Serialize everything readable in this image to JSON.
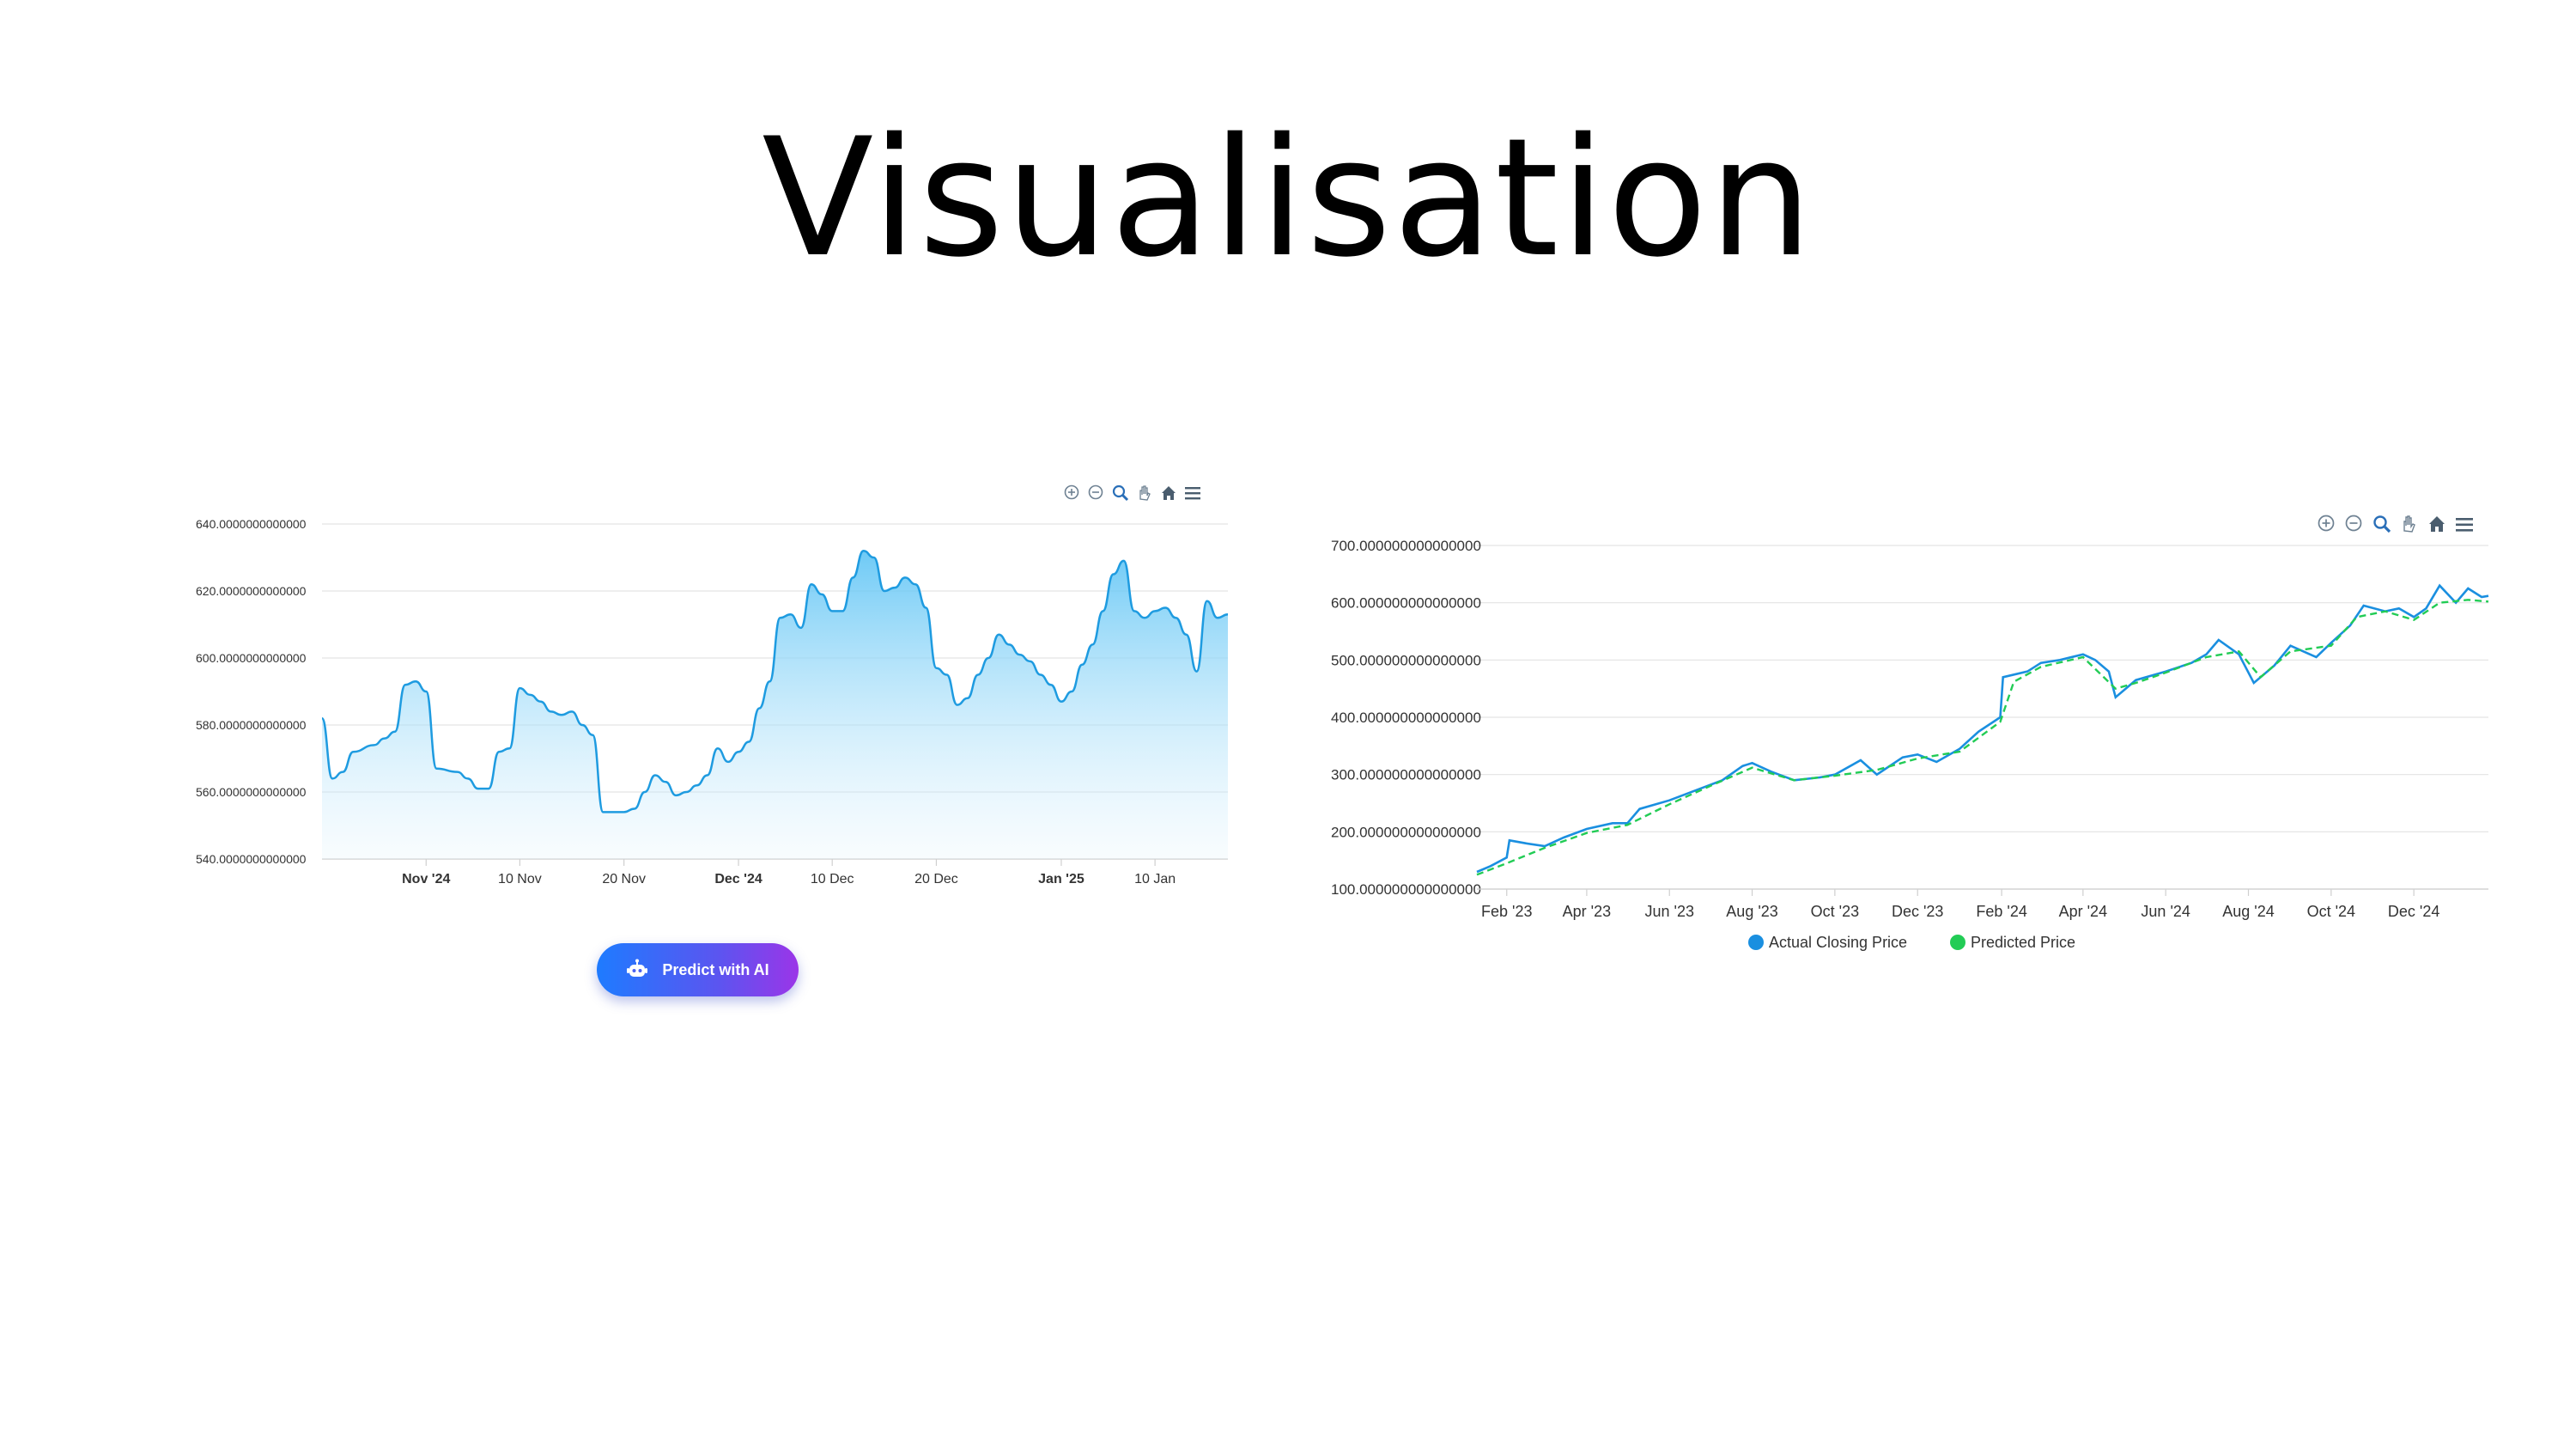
{
  "slide": {
    "title": "Visualisation"
  },
  "toolbar_icons": [
    "zoom-in-icon",
    "zoom-out-icon",
    "zoom-selection-icon",
    "pan-hand-icon",
    "home-reset-icon",
    "menu-icon"
  ],
  "colors": {
    "line1": "#1e9be0",
    "actual": "#1a8fe0",
    "predicted": "#22cc55",
    "button_start": "#1e7bff",
    "button_end": "#9b35e8"
  },
  "predict_button": {
    "label": "Predict with AI",
    "icon": "robot-icon"
  },
  "chart_data": [
    {
      "type": "area",
      "title": "",
      "xlabel": "",
      "ylabel": "",
      "ylim": [
        540,
        640
      ],
      "y_ticks": [
        "540.0000000000000",
        "560.0000000000000",
        "580.0000000000000",
        "600.0000000000000",
        "620.0000000000000",
        "640.0000000000000"
      ],
      "x_ticks": [
        {
          "date": "2024-11-01",
          "label": "Nov '24",
          "bold": true
        },
        {
          "date": "2024-11-10",
          "label": "10 Nov",
          "bold": false
        },
        {
          "date": "2024-11-20",
          "label": "20 Nov",
          "bold": false
        },
        {
          "date": "2024-12-01",
          "label": "Dec '24",
          "bold": true
        },
        {
          "date": "2024-12-10",
          "label": "10 Dec",
          "bold": false
        },
        {
          "date": "2024-12-20",
          "label": "20 Dec",
          "bold": false
        },
        {
          "date": "2025-01-01",
          "label": "Jan '25",
          "bold": true
        },
        {
          "date": "2025-01-10",
          "label": "10 Jan",
          "bold": false
        }
      ],
      "xlim": [
        "2024-10-22",
        "2025-01-17"
      ],
      "grid": true,
      "series": [
        {
          "points": [
            [
              "2024-10-22",
              582
            ],
            [
              "2024-10-23",
              564
            ],
            [
              "2024-10-24",
              566
            ],
            [
              "2024-10-25",
              572
            ],
            [
              "2024-10-27",
              574
            ],
            [
              "2024-10-28",
              576
            ],
            [
              "2024-10-29",
              578
            ],
            [
              "2024-10-30",
              592
            ],
            [
              "2024-10-31",
              593
            ],
            [
              "2024-11-01",
              590
            ],
            [
              "2024-11-02",
              567
            ],
            [
              "2024-11-04",
              566
            ],
            [
              "2024-11-05",
              564
            ],
            [
              "2024-11-06",
              561
            ],
            [
              "2024-11-07",
              561
            ],
            [
              "2024-11-08",
              572
            ],
            [
              "2024-11-09",
              573
            ],
            [
              "2024-11-10",
              591
            ],
            [
              "2024-11-11",
              589
            ],
            [
              "2024-11-12",
              587
            ],
            [
              "2024-11-13",
              584
            ],
            [
              "2024-11-14",
              583
            ],
            [
              "2024-11-15",
              584
            ],
            [
              "2024-11-16",
              580
            ],
            [
              "2024-11-17",
              577
            ],
            [
              "2024-11-18",
              554
            ],
            [
              "2024-11-19",
              554
            ],
            [
              "2024-11-20",
              554
            ],
            [
              "2024-11-21",
              555
            ],
            [
              "2024-11-22",
              560
            ],
            [
              "2024-11-23",
              565
            ],
            [
              "2024-11-24",
              563
            ],
            [
              "2024-11-25",
              559
            ],
            [
              "2024-11-26",
              560
            ],
            [
              "2024-11-27",
              562
            ],
            [
              "2024-11-28",
              565
            ],
            [
              "2024-11-29",
              573
            ],
            [
              "2024-11-30",
              569
            ],
            [
              "2024-12-01",
              572
            ],
            [
              "2024-12-02",
              575
            ],
            [
              "2024-12-03",
              585
            ],
            [
              "2024-12-04",
              593
            ],
            [
              "2024-12-05",
              612
            ],
            [
              "2024-12-06",
              613
            ],
            [
              "2024-12-07",
              609
            ],
            [
              "2024-12-08",
              622
            ],
            [
              "2024-12-09",
              619
            ],
            [
              "2024-12-10",
              614
            ],
            [
              "2024-12-11",
              614
            ],
            [
              "2024-12-12",
              624
            ],
            [
              "2024-12-13",
              632
            ],
            [
              "2024-12-14",
              630
            ],
            [
              "2024-12-15",
              620
            ],
            [
              "2024-12-16",
              621
            ],
            [
              "2024-12-17",
              624
            ],
            [
              "2024-12-18",
              622
            ],
            [
              "2024-12-19",
              615
            ],
            [
              "2024-12-20",
              597
            ],
            [
              "2024-12-21",
              595
            ],
            [
              "2024-12-22",
              586
            ],
            [
              "2024-12-23",
              588
            ],
            [
              "2024-12-24",
              595
            ],
            [
              "2024-12-25",
              600
            ],
            [
              "2024-12-26",
              607
            ],
            [
              "2024-12-27",
              604
            ],
            [
              "2024-12-28",
              601
            ],
            [
              "2024-12-29",
              599
            ],
            [
              "2024-12-30",
              595
            ],
            [
              "2024-12-31",
              592
            ],
            [
              "2025-01-01",
              587
            ],
            [
              "2025-01-02",
              590
            ],
            [
              "2025-01-03",
              598
            ],
            [
              "2025-01-04",
              604
            ],
            [
              "2025-01-05",
              614
            ],
            [
              "2025-01-06",
              625
            ],
            [
              "2025-01-07",
              629
            ],
            [
              "2025-01-08",
              614
            ],
            [
              "2025-01-09",
              612
            ],
            [
              "2025-01-10",
              614
            ],
            [
              "2025-01-11",
              615
            ],
            [
              "2025-01-12",
              612
            ],
            [
              "2025-01-13",
              607
            ],
            [
              "2025-01-14",
              596
            ],
            [
              "2025-01-15",
              617
            ],
            [
              "2025-01-16",
              612
            ],
            [
              "2025-01-17",
              613
            ]
          ]
        }
      ]
    },
    {
      "type": "line",
      "title": "",
      "xlabel": "",
      "ylabel": "",
      "ylim": [
        100,
        700
      ],
      "y_ticks": [
        "100.000000000000000",
        "200.000000000000000",
        "300.000000000000000",
        "400.000000000000000",
        "500.000000000000000",
        "600.000000000000000",
        "700.000000000000000"
      ],
      "x_ticks": [
        {
          "date": "2023-02-01",
          "label": "Feb '23"
        },
        {
          "date": "2023-04-01",
          "label": "Apr '23"
        },
        {
          "date": "2023-06-01",
          "label": "Jun '23"
        },
        {
          "date": "2023-08-01",
          "label": "Aug '23"
        },
        {
          "date": "2023-10-01",
          "label": "Oct '23"
        },
        {
          "date": "2023-12-01",
          "label": "Dec '23"
        },
        {
          "date": "2024-02-01",
          "label": "Feb '24"
        },
        {
          "date": "2024-04-01",
          "label": "Apr '24"
        },
        {
          "date": "2024-06-01",
          "label": "Jun '24"
        },
        {
          "date": "2024-08-01",
          "label": "Aug '24"
        },
        {
          "date": "2024-10-01",
          "label": "Oct '24"
        },
        {
          "date": "2024-12-01",
          "label": "Dec '24"
        }
      ],
      "xlim": [
        "2023-01-10",
        "2025-01-25"
      ],
      "grid": true,
      "legend_position": "bottom",
      "series": [
        {
          "name": "Actual Closing Price",
          "points": [
            [
              "2023-01-10",
              130
            ],
            [
              "2023-01-20",
              140
            ],
            [
              "2023-02-01",
              155
            ],
            [
              "2023-02-03",
              185
            ],
            [
              "2023-02-15",
              180
            ],
            [
              "2023-03-01",
              175
            ],
            [
              "2023-03-15",
              190
            ],
            [
              "2023-04-01",
              205
            ],
            [
              "2023-04-20",
              215
            ],
            [
              "2023-05-01",
              215
            ],
            [
              "2023-05-10",
              240
            ],
            [
              "2023-06-01",
              255
            ],
            [
              "2023-06-20",
              272
            ],
            [
              "2023-07-10",
              290
            ],
            [
              "2023-07-25",
              315
            ],
            [
              "2023-08-01",
              320
            ],
            [
              "2023-08-15",
              305
            ],
            [
              "2023-09-01",
              290
            ],
            [
              "2023-09-20",
              295
            ],
            [
              "2023-10-01",
              300
            ],
            [
              "2023-10-20",
              325
            ],
            [
              "2023-11-01",
              300
            ],
            [
              "2023-11-20",
              330
            ],
            [
              "2023-12-01",
              335
            ],
            [
              "2023-12-15",
              322
            ],
            [
              "2024-01-01",
              345
            ],
            [
              "2024-01-15",
              375
            ],
            [
              "2024-01-31",
              400
            ],
            [
              "2024-02-02",
              470
            ],
            [
              "2024-02-20",
              480
            ],
            [
              "2024-03-01",
              495
            ],
            [
              "2024-03-15",
              500
            ],
            [
              "2024-04-01",
              510
            ],
            [
              "2024-04-10",
              500
            ],
            [
              "2024-04-20",
              480
            ],
            [
              "2024-04-25",
              435
            ],
            [
              "2024-05-10",
              465
            ],
            [
              "2024-06-01",
              480
            ],
            [
              "2024-06-20",
              495
            ],
            [
              "2024-07-01",
              510
            ],
            [
              "2024-07-10",
              535
            ],
            [
              "2024-07-25",
              510
            ],
            [
              "2024-08-05",
              460
            ],
            [
              "2024-08-20",
              490
            ],
            [
              "2024-09-01",
              525
            ],
            [
              "2024-09-20",
              505
            ],
            [
              "2024-10-01",
              530
            ],
            [
              "2024-10-15",
              560
            ],
            [
              "2024-10-25",
              595
            ],
            [
              "2024-11-10",
              585
            ],
            [
              "2024-11-20",
              590
            ],
            [
              "2024-12-01",
              575
            ],
            [
              "2024-12-10",
              590
            ],
            [
              "2024-12-20",
              630
            ],
            [
              "2025-01-01",
              600
            ],
            [
              "2025-01-10",
              625
            ],
            [
              "2025-01-20",
              610
            ],
            [
              "2025-01-25",
              612
            ]
          ]
        },
        {
          "name": "Predicted Price",
          "points": [
            [
              "2023-01-10",
              125
            ],
            [
              "2023-02-01",
              145
            ],
            [
              "2023-03-01",
              172
            ],
            [
              "2023-04-01",
              198
            ],
            [
              "2023-05-01",
              212
            ],
            [
              "2023-06-01",
              248
            ],
            [
              "2023-07-01",
              280
            ],
            [
              "2023-08-01",
              312
            ],
            [
              "2023-09-01",
              290
            ],
            [
              "2023-10-01",
              298
            ],
            [
              "2023-11-01",
              308
            ],
            [
              "2023-12-01",
              328
            ],
            [
              "2024-01-01",
              340
            ],
            [
              "2024-01-31",
              392
            ],
            [
              "2024-02-10",
              462
            ],
            [
              "2024-03-01",
              488
            ],
            [
              "2024-04-01",
              505
            ],
            [
              "2024-04-25",
              450
            ],
            [
              "2024-05-10",
              460
            ],
            [
              "2024-06-01",
              478
            ],
            [
              "2024-07-01",
              505
            ],
            [
              "2024-07-25",
              515
            ],
            [
              "2024-08-10",
              470
            ],
            [
              "2024-09-01",
              515
            ],
            [
              "2024-10-01",
              525
            ],
            [
              "2024-10-20",
              575
            ],
            [
              "2024-11-10",
              585
            ],
            [
              "2024-12-01",
              570
            ],
            [
              "2024-12-20",
              600
            ],
            [
              "2025-01-10",
              605
            ],
            [
              "2025-01-25",
              602
            ]
          ]
        }
      ]
    }
  ]
}
